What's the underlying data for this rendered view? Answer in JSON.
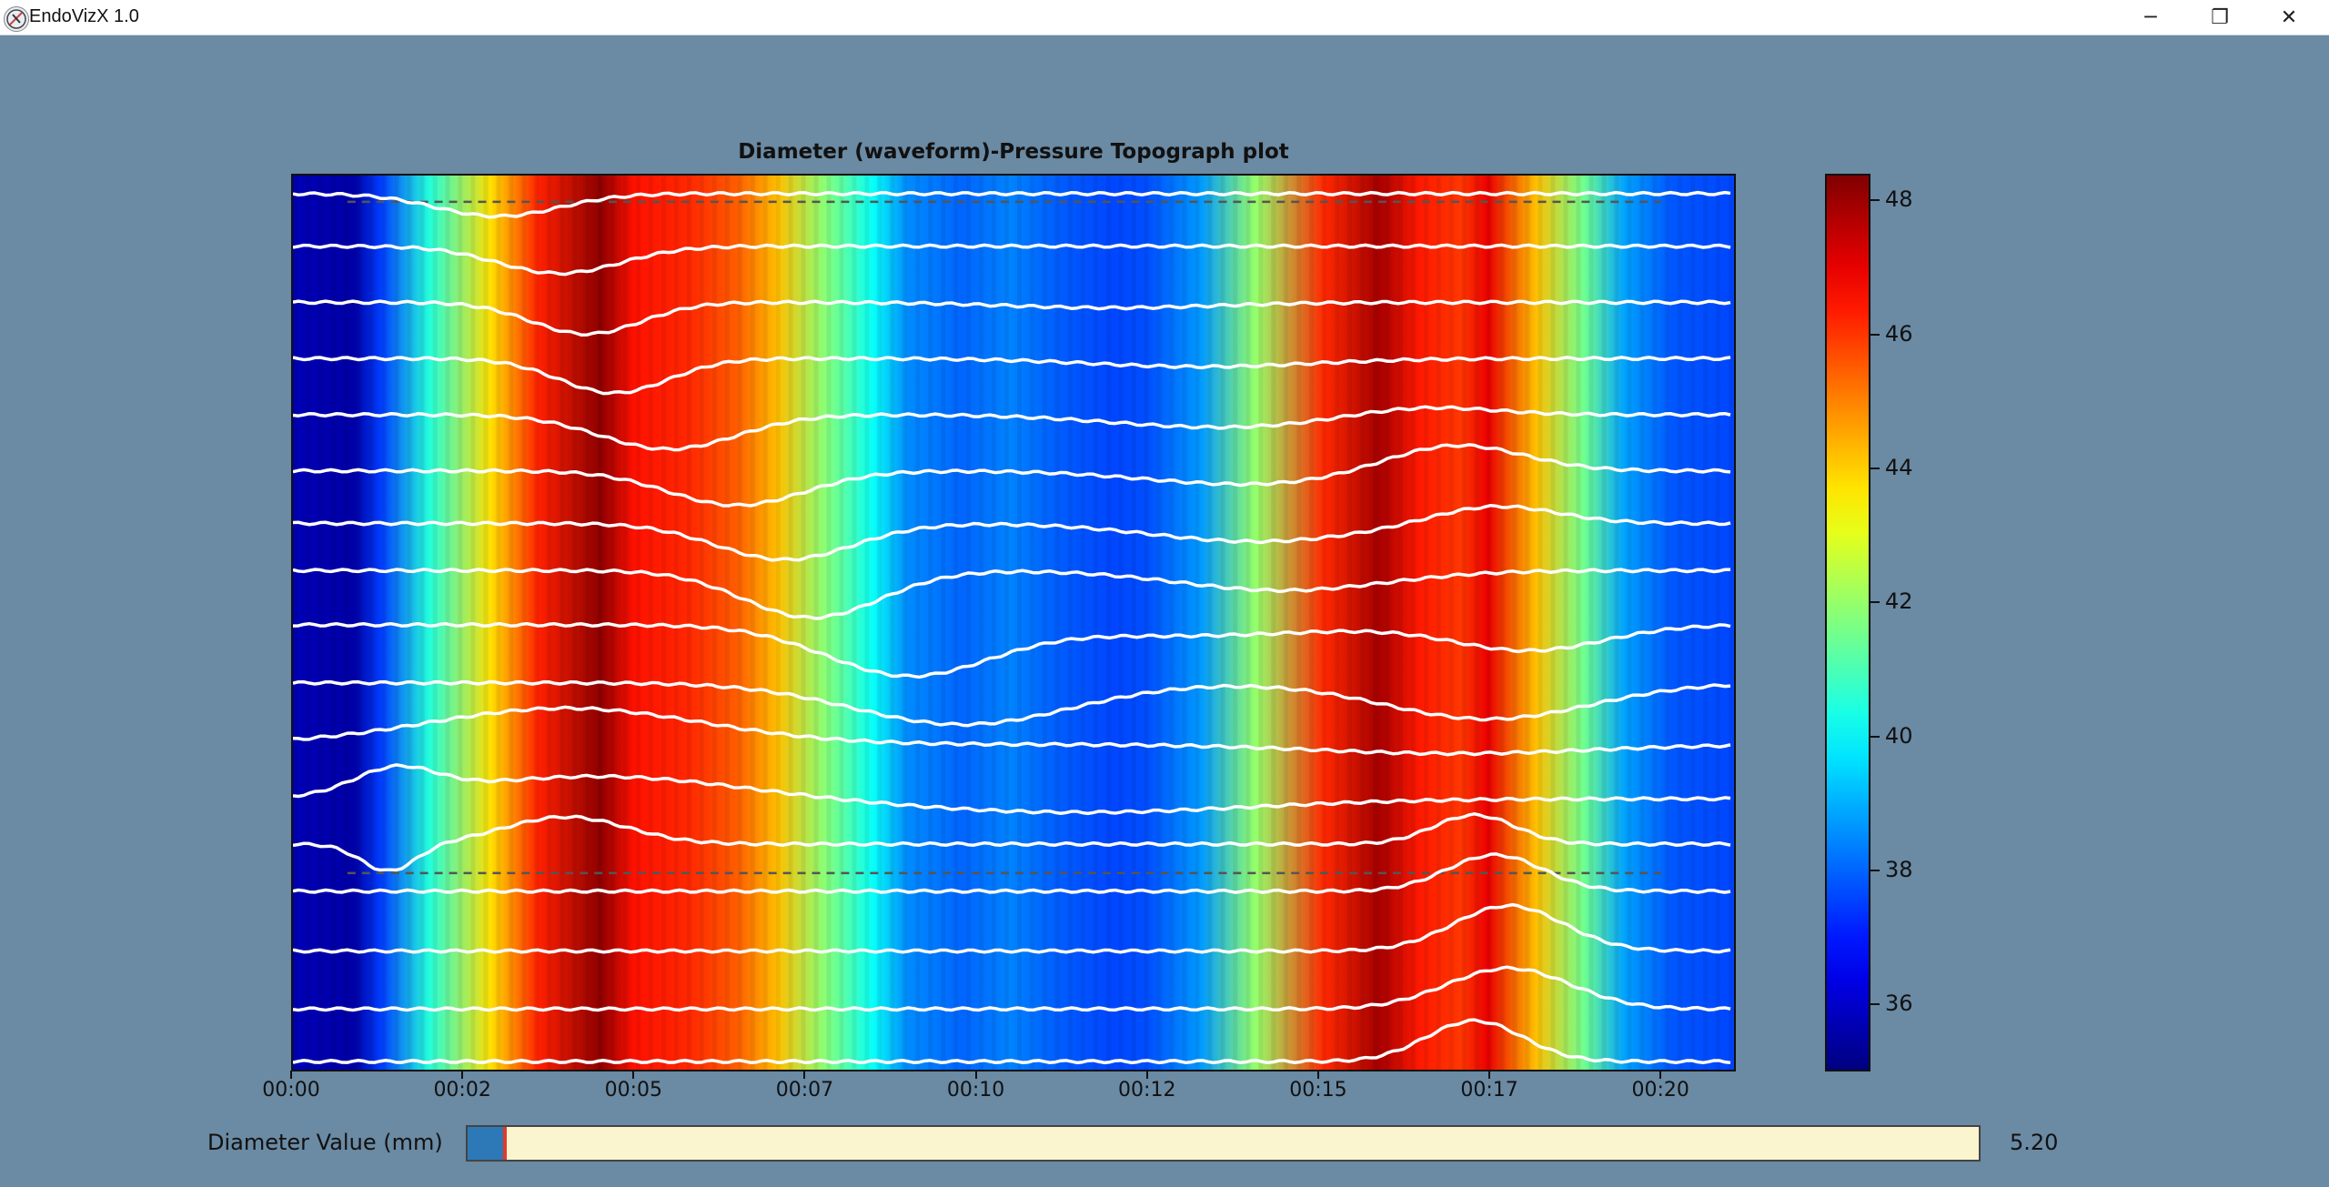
{
  "window": {
    "title": "EndoVizX 1.0",
    "controls": {
      "minimize": "─",
      "maximize": "❐",
      "close": "✕"
    }
  },
  "plot": {
    "title": "Diameter (waveform)-Pressure Topograph plot"
  },
  "diameter": {
    "label": "Diameter Value (mm)",
    "value": "5.20",
    "slider_fraction": 0.02
  },
  "colors": {
    "background": "#6b8aa3",
    "waveform": "#ffffff",
    "dashed_line": "#555555",
    "slider_fill": "#2d78b7",
    "slider_cursor": "#e23a2a"
  },
  "chart_data": {
    "type": "heatmap",
    "title": "Diameter (waveform)-Pressure Topograph plot",
    "colormap": "jet",
    "x_tick_labels": [
      "00:00",
      "00:02",
      "00:05",
      "00:07",
      "00:10",
      "00:12",
      "00:15",
      "00:17",
      "00:20"
    ],
    "x_tick_seconds": [
      0,
      2.5,
      5,
      7.5,
      10,
      12.5,
      15,
      17.5,
      20
    ],
    "xlim_seconds": [
      0,
      21.1
    ],
    "colorbar": {
      "ticks": [
        "36",
        "38",
        "40",
        "42",
        "44",
        "46",
        "48"
      ],
      "tick_values": [
        36,
        38,
        40,
        42,
        44,
        46,
        48
      ],
      "range": [
        35,
        48.4
      ]
    },
    "pressure_profile": {
      "t": [
        0,
        0.9,
        1.3,
        2.0,
        2.9,
        3.6,
        4.5,
        5.0,
        5.8,
        6.5,
        7.1,
        7.8,
        8.5,
        9.0,
        9.8,
        10.5,
        11.2,
        12.0,
        12.5,
        13.3,
        14.1,
        15.1,
        15.9,
        16.5,
        17.1,
        17.5,
        18.2,
        18.9,
        19.5,
        20.2,
        21.1
      ],
      "values": [
        35.7,
        35.5,
        37.5,
        40.5,
        43.8,
        46.3,
        48.2,
        46.5,
        46.2,
        45.5,
        44.2,
        41.8,
        40.1,
        38.5,
        38.0,
        38.4,
        37.9,
        37.6,
        37.7,
        38.7,
        42.0,
        46.2,
        47.9,
        46.4,
        46.0,
        47.0,
        44.2,
        41.5,
        38.8,
        37.8,
        37.6
      ]
    },
    "waveform_lines": 17,
    "dashed_reference_lines": 2
  }
}
